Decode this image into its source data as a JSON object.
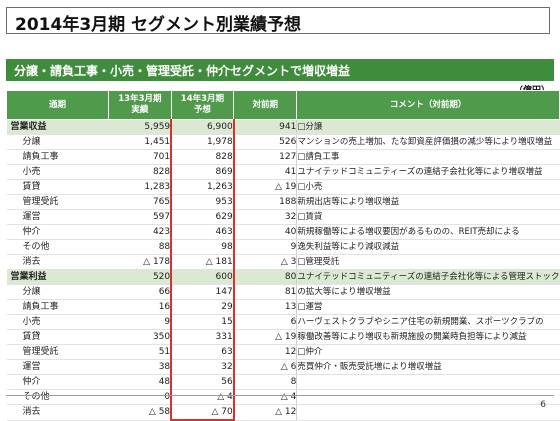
{
  "title": "2014年3月期 セグメント別業績予想",
  "subtitle": "分譲・請負工事・小売・管理受託・仲介セグメントで増収増益",
  "unit": "（億円）",
  "headers": {
    "period": "通期",
    "fy13_line1": "13年3月期",
    "fy13_line2": "実績",
    "fy14_line1": "14年3月期",
    "fy14_line2": "予想",
    "yoy": "対前期",
    "comment": "コメント（対前期）"
  },
  "rows": [
    {
      "label": "営業収益",
      "fy13": "5,959",
      "fy14": "6,900",
      "yoy": "941",
      "kind": "cat",
      "comment": "□分譲"
    },
    {
      "label": "分譲",
      "fy13": "1,451",
      "fy14": "1,978",
      "yoy": "526",
      "kind": "sub",
      "comment": "マンションの売上増加、たな卸資産評価損の減少等により増収増益"
    },
    {
      "label": "請負工事",
      "fy13": "701",
      "fy14": "828",
      "yoy": "127",
      "kind": "sub",
      "comment": "□請負工事"
    },
    {
      "label": "小売",
      "fy13": "828",
      "fy14": "869",
      "yoy": "41",
      "kind": "sub",
      "comment": "ユナイテッドコミュニティーズの連結子会社化等により増収増益"
    },
    {
      "label": "賃貸",
      "fy13": "1,283",
      "fy14": "1,263",
      "yoy": "△ 19",
      "kind": "sub",
      "comment": "□小売"
    },
    {
      "label": "管理受託",
      "fy13": "765",
      "fy14": "953",
      "yoy": "188",
      "kind": "sub",
      "comment": "新規出店等により増収増益"
    },
    {
      "label": "運営",
      "fy13": "597",
      "fy14": "629",
      "yoy": "32",
      "kind": "sub",
      "comment": "□賃貸"
    },
    {
      "label": "仲介",
      "fy13": "423",
      "fy14": "463",
      "yoy": "40",
      "kind": "sub",
      "comment": "新規稼働等による増収要因があるものの、REIT売却による"
    },
    {
      "label": "その他",
      "fy13": "88",
      "fy14": "98",
      "yoy": "9",
      "kind": "sub",
      "comment": "逸失利益等により減収減益"
    },
    {
      "label": "消去",
      "fy13": "△ 178",
      "fy14": "△ 181",
      "yoy": "△ 3",
      "kind": "sub",
      "comment": "□管理受託"
    },
    {
      "label": "営業利益",
      "fy13": "520",
      "fy14": "600",
      "yoy": "80",
      "kind": "cat",
      "comment": "ユナイテッドコミュニティーズの連結子会社化等による管理ストック"
    },
    {
      "label": "分譲",
      "fy13": "66",
      "fy14": "147",
      "yoy": "81",
      "kind": "sub",
      "comment": "の拡大等により増収増益"
    },
    {
      "label": "請負工事",
      "fy13": "16",
      "fy14": "29",
      "yoy": "13",
      "kind": "sub",
      "comment": "□運営"
    },
    {
      "label": "小売",
      "fy13": "9",
      "fy14": "15",
      "yoy": "6",
      "kind": "sub",
      "comment": "ハーヴェストクラブやシニア住宅の新規開業、スポーツクラブの"
    },
    {
      "label": "賃貸",
      "fy13": "350",
      "fy14": "331",
      "yoy": "△ 19",
      "kind": "sub",
      "comment": "稼働改善等により増収も新規施設の開業時負担等により減益"
    },
    {
      "label": "管理受託",
      "fy13": "51",
      "fy14": "63",
      "yoy": "12",
      "kind": "sub",
      "comment": "□仲介"
    },
    {
      "label": "運営",
      "fy13": "38",
      "fy14": "32",
      "yoy": "△ 6",
      "kind": "sub",
      "comment": "売買仲介・販売受託増により増収増益"
    },
    {
      "label": "仲介",
      "fy13": "48",
      "fy14": "56",
      "yoy": "8",
      "kind": "sub",
      "comment": ""
    },
    {
      "label": "その他",
      "fy13": "0",
      "fy14": "△ 4",
      "yoy": "△ 4",
      "kind": "sub",
      "comment": ""
    },
    {
      "label": "消去",
      "fy13": "△ 58",
      "fy14": "△ 70",
      "yoy": "△ 12",
      "kind": "sub",
      "comment": ""
    }
  ],
  "page_number": "6",
  "colors": {
    "header_green": "#4f9a4b",
    "band_green": "#3f8c3d",
    "highlight_red": "#d93030"
  }
}
